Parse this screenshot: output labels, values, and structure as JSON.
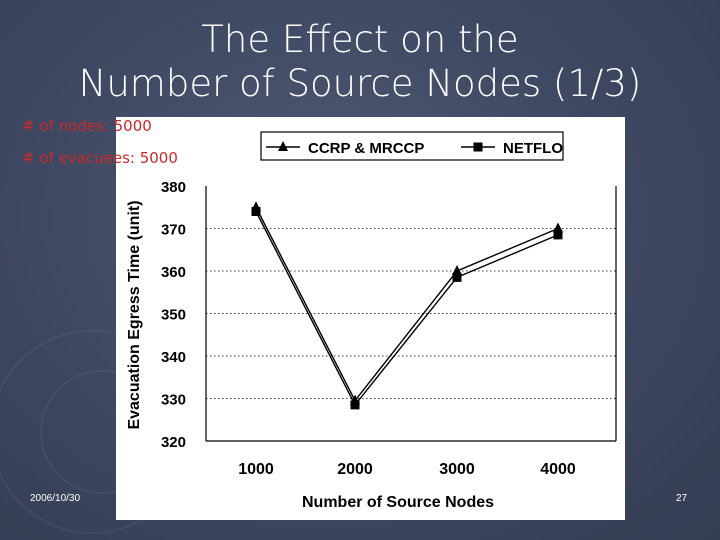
{
  "slide": {
    "title_line1": "The Effect on the",
    "title_line2": "Number of Source Nodes (1/3)",
    "nodes_label": "# of nodes: ",
    "nodes_value": "5000",
    "evacuees_label": "# of evacuees: ",
    "evacuees_value": "5000",
    "date": "2006/10/30",
    "page_number": "27"
  },
  "colors": {
    "background": "#3e4761",
    "title_text": "#ffffff",
    "label_red": "#c52b2b",
    "series_line": "#000000"
  },
  "icons": {
    "background_decoration": "compass-watermark",
    "series_1_marker": "triangle",
    "series_2_marker": "square"
  },
  "chart_data": {
    "type": "line",
    "title": "",
    "xlabel": "Number of Source Nodes",
    "ylabel": "Evacuation Egress Time (unit)",
    "categories": [
      "1000",
      "2000",
      "3000",
      "4000"
    ],
    "yticks": [
      "320",
      "330",
      "340",
      "350",
      "360",
      "370",
      "380"
    ],
    "ylim": [
      320,
      380
    ],
    "grid": "horizontal-dotted",
    "legend_position": "top",
    "series": [
      {
        "name": "CCRP & MRCCP",
        "marker": "triangle",
        "values": [
          375,
          329.5,
          360,
          370
        ]
      },
      {
        "name": "NETFLO",
        "marker": "square",
        "values": [
          374,
          328.5,
          358.5,
          368.5
        ]
      }
    ]
  }
}
